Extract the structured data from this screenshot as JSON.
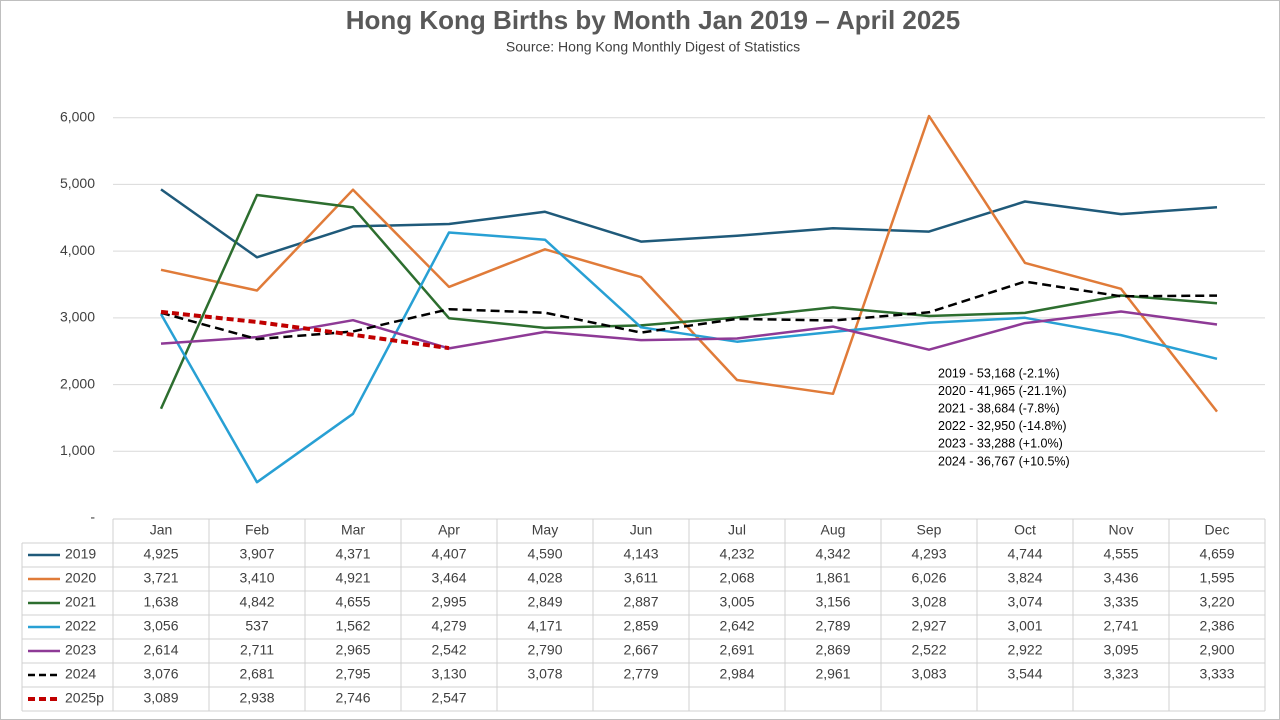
{
  "chart_data": {
    "type": "line",
    "title": "Hong Kong Births by Month Jan 2019 – April 2025",
    "subtitle": "Source: Hong Kong Monthly Digest of Statistics",
    "categories": [
      "Jan",
      "Feb",
      "Mar",
      "Apr",
      "May",
      "Jun",
      "Jul",
      "Aug",
      "Sep",
      "Oct",
      "Nov",
      "Dec"
    ],
    "ylim": [
      0,
      7000
    ],
    "yticks": [
      {
        "value": 0,
        "label": "-"
      },
      {
        "value": 1000,
        "label": "1,000"
      },
      {
        "value": 2000,
        "label": "2,000"
      },
      {
        "value": 3000,
        "label": "3,000"
      },
      {
        "value": 4000,
        "label": "4,000"
      },
      {
        "value": 5000,
        "label": "5,000"
      },
      {
        "value": 6000,
        "label": "6,000"
      }
    ],
    "grid": true,
    "series": [
      {
        "name": "2019",
        "color": "#1f5a7a",
        "dash": false,
        "values": [
          4925,
          3907,
          4371,
          4407,
          4590,
          4143,
          4232,
          4342,
          4293,
          4744,
          4555,
          4659
        ],
        "value_labels": [
          "4,925",
          "3,907",
          "4,371",
          "4,407",
          "4,590",
          "4,143",
          "4,232",
          "4,342",
          "4,293",
          "4,744",
          "4,555",
          "4,659"
        ]
      },
      {
        "name": "2020",
        "color": "#e07b39",
        "dash": false,
        "values": [
          3721,
          3410,
          4921,
          3464,
          4028,
          3611,
          2068,
          1861,
          6026,
          3824,
          3436,
          1595
        ],
        "value_labels": [
          "3,721",
          "3,410",
          "4,921",
          "3,464",
          "4,028",
          "3,611",
          "2,068",
          "1,861",
          "6,026",
          "3,824",
          "3,436",
          "1,595"
        ]
      },
      {
        "name": "2021",
        "color": "#2d6e2f",
        "dash": false,
        "values": [
          1638,
          4842,
          4655,
          2995,
          2849,
          2887,
          3005,
          3156,
          3028,
          3074,
          3335,
          3220
        ],
        "value_labels": [
          "1,638",
          "4,842",
          "4,655",
          "2,995",
          "2,849",
          "2,887",
          "3,005",
          "3,156",
          "3,028",
          "3,074",
          "3,335",
          "3,220"
        ]
      },
      {
        "name": "2022",
        "color": "#28a0d4",
        "dash": false,
        "values": [
          3056,
          537,
          1562,
          4279,
          4171,
          2859,
          2642,
          2789,
          2927,
          3001,
          2741,
          2386
        ],
        "value_labels": [
          "3,056",
          "537",
          "1,562",
          "4,279",
          "4,171",
          "2,859",
          "2,642",
          "2,789",
          "2,927",
          "3,001",
          "2,741",
          "2,386"
        ]
      },
      {
        "name": "2023",
        "color": "#8e3a96",
        "dash": false,
        "values": [
          2614,
          2711,
          2965,
          2542,
          2790,
          2667,
          2691,
          2869,
          2522,
          2922,
          3095,
          2900
        ],
        "value_labels": [
          "2,614",
          "2,711",
          "2,965",
          "2,542",
          "2,790",
          "2,667",
          "2,691",
          "2,869",
          "2,522",
          "2,922",
          "3,095",
          "2,900"
        ]
      },
      {
        "name": "2024",
        "color": "#000000",
        "dash": true,
        "values": [
          3076,
          2681,
          2795,
          3130,
          3078,
          2779,
          2984,
          2961,
          3083,
          3544,
          3323,
          3333
        ],
        "value_labels": [
          "3,076",
          "2,681",
          "2,795",
          "3,130",
          "3,078",
          "2,779",
          "2,984",
          "2,961",
          "3,083",
          "3,544",
          "3,323",
          "3,333"
        ]
      },
      {
        "name": "2025p",
        "color": "#c00000",
        "dash": true,
        "values": [
          3089,
          2938,
          2746,
          2547,
          null,
          null,
          null,
          null,
          null,
          null,
          null,
          null
        ],
        "value_labels": [
          "3,089",
          "2,938",
          "2,746",
          "2,547",
          null,
          null,
          null,
          null,
          null,
          null,
          null,
          null
        ]
      }
    ],
    "annotations": [
      "2019 - 53,168 (-2.1%)",
      "2020 - 41,965 (-21.1%)",
      "2021 - 38,684 (-7.8%)",
      "2022 - 32,950 (-14.8%)",
      "2023 - 33,288 (+1.0%)",
      "2024 - 36,767 (+10.5%)"
    ]
  }
}
